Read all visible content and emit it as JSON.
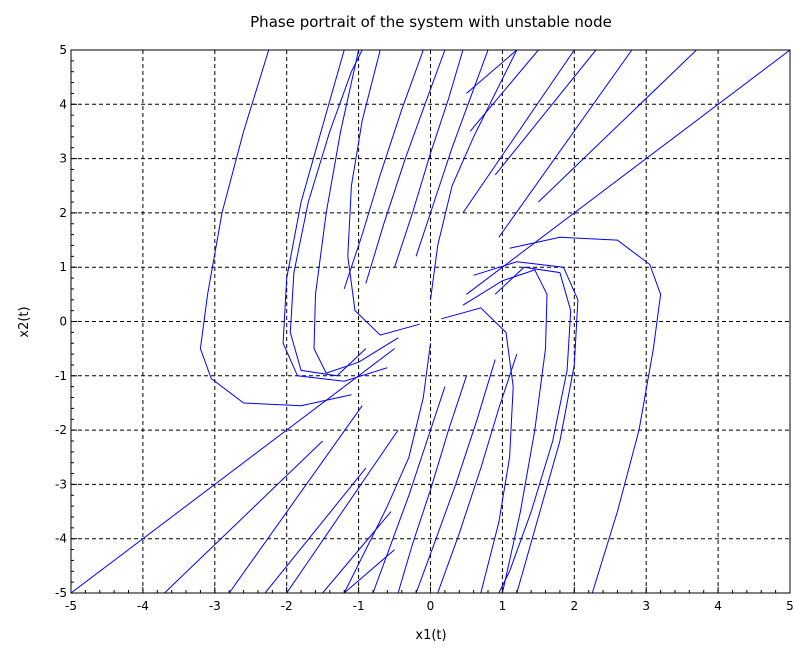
{
  "chart_data": {
    "type": "line",
    "title": "Phase portrait of the system with unstable node",
    "xlabel": "x1(t)",
    "ylabel": "x2(t)",
    "xlim": [
      -5,
      5
    ],
    "ylim": [
      -5,
      5
    ],
    "xticks": [
      -5,
      -4,
      -3,
      -2,
      -1,
      0,
      1,
      2,
      3,
      4,
      5
    ],
    "yticks": [
      -5,
      -4,
      -3,
      -2,
      -1,
      0,
      1,
      2,
      3,
      4,
      5
    ],
    "grid": true,
    "grid_style": "dashed",
    "legend": false,
    "line_color": "#0000ff",
    "series": [
      {
        "x": [
          0.5,
          5
        ],
        "y": [
          0.5,
          5
        ]
      },
      {
        "x": [
          -0.5,
          -5
        ],
        "y": [
          -0.5,
          -5
        ]
      },
      {
        "x": [
          1.1,
          1.8,
          2.6,
          3.05,
          3.2,
          3.1,
          2.9,
          2.6,
          2.25
        ],
        "y": [
          1.35,
          1.55,
          1.5,
          1.05,
          0.5,
          -0.5,
          -2.0,
          -3.5,
          -5
        ]
      },
      {
        "x": [
          -1.1,
          -1.8,
          -2.6,
          -3.05,
          -3.2,
          -3.1,
          -2.9,
          -2.6,
          -2.25
        ],
        "y": [
          -1.35,
          -1.55,
          -1.5,
          -1.05,
          -0.5,
          0.5,
          2.0,
          3.5,
          5
        ]
      },
      {
        "x": [
          0.45,
          1.0,
          1.45,
          1.62,
          1.6,
          1.45,
          1.25,
          1.0
        ],
        "y": [
          0.3,
          0.75,
          0.95,
          0.5,
          -0.5,
          -2.0,
          -3.5,
          -5
        ]
      },
      {
        "x": [
          -0.45,
          -1.0,
          -1.45,
          -1.62,
          -1.6,
          -1.45,
          -1.25,
          -1.0
        ],
        "y": [
          -0.3,
          -0.75,
          -0.95,
          -0.5,
          0.5,
          2.0,
          3.5,
          5
        ]
      },
      {
        "x": [
          0.6,
          1.2,
          1.85,
          2.05,
          2.0,
          1.8,
          1.5,
          1.2
        ],
        "y": [
          0.85,
          1.1,
          1.0,
          0.4,
          -0.8,
          -2.2,
          -3.6,
          -5
        ]
      },
      {
        "x": [
          -0.6,
          -1.2,
          -1.85,
          -2.05,
          -2.0,
          -1.8,
          -1.5,
          -1.2
        ],
        "y": [
          -0.85,
          -1.1,
          -1.0,
          -0.4,
          0.8,
          2.2,
          3.6,
          5
        ]
      },
      {
        "x": [
          0.15,
          0.7,
          1.05,
          1.15,
          1.1,
          0.95,
          0.7
        ],
        "y": [
          0.05,
          0.25,
          -0.2,
          -1.2,
          -2.5,
          -3.7,
          -5
        ]
      },
      {
        "x": [
          -0.15,
          -0.7,
          -1.05,
          -1.15,
          -1.1,
          -0.95,
          -0.7
        ],
        "y": [
          -0.05,
          -0.25,
          0.2,
          1.2,
          2.5,
          3.7,
          5
        ]
      },
      {
        "x": [
          0.9,
          1.3,
          1.8,
          1.95,
          1.9,
          1.7,
          1.4,
          1.1,
          0.95
        ],
        "y": [
          0.5,
          1.0,
          0.9,
          0.2,
          -0.9,
          -2.2,
          -3.5,
          -4.6,
          -5
        ]
      },
      {
        "x": [
          -0.9,
          -1.3,
          -1.8,
          -1.95,
          -1.9,
          -1.7,
          -1.4,
          -1.1,
          -0.95
        ],
        "y": [
          -0.5,
          -1.0,
          -0.9,
          -0.2,
          0.9,
          2.2,
          3.5,
          4.6,
          5
        ]
      },
      {
        "x": [
          0.45,
          2.0
        ],
        "y": [
          2.0,
          5
        ]
      },
      {
        "x": [
          0.95,
          2.8
        ],
        "y": [
          1.55,
          5
        ]
      },
      {
        "x": [
          1.5,
          3.7
        ],
        "y": [
          2.2,
          5
        ]
      },
      {
        "x": [
          0.55,
          1.5
        ],
        "y": [
          3.5,
          5
        ]
      },
      {
        "x": [
          0.9,
          2.3
        ],
        "y": [
          2.7,
          5
        ]
      },
      {
        "x": [
          0.5,
          1.2
        ],
        "y": [
          4.2,
          5
        ]
      },
      {
        "x": [
          -0.45,
          -2.0
        ],
        "y": [
          -2.0,
          -5
        ]
      },
      {
        "x": [
          -0.95,
          -2.8
        ],
        "y": [
          -1.55,
          -5
        ]
      },
      {
        "x": [
          -1.5,
          -3.7
        ],
        "y": [
          -2.2,
          -5
        ]
      },
      {
        "x": [
          -0.55,
          -1.5
        ],
        "y": [
          -3.5,
          -5
        ]
      },
      {
        "x": [
          -0.9,
          -2.3
        ],
        "y": [
          -2.7,
          -5
        ]
      },
      {
        "x": [
          -0.5,
          -1.2
        ],
        "y": [
          -4.2,
          -5
        ]
      },
      {
        "x": [
          0.0,
          0.1,
          0.3,
          0.6,
          0.9,
          1.2
        ],
        "y": [
          0.4,
          1.4,
          2.5,
          3.4,
          4.2,
          5
        ]
      },
      {
        "x": [
          -0.2,
          0.05,
          0.3,
          0.55,
          0.8
        ],
        "y": [
          1.2,
          2.2,
          3.2,
          4.1,
          5
        ]
      },
      {
        "x": [
          -0.5,
          -0.25,
          0.0,
          0.25,
          0.45
        ],
        "y": [
          1.0,
          2.0,
          3.1,
          4.1,
          5
        ]
      },
      {
        "x": [
          -0.9,
          -0.65,
          -0.35,
          -0.05,
          0.2
        ],
        "y": [
          0.7,
          1.8,
          3.0,
          4.1,
          5
        ]
      },
      {
        "x": [
          -1.2,
          -0.95,
          -0.7,
          -0.4,
          -0.1
        ],
        "y": [
          0.6,
          1.6,
          2.7,
          3.9,
          5
        ]
      },
      {
        "x": [
          0.0,
          -0.1,
          -0.3,
          -0.6,
          -0.9,
          -1.2
        ],
        "y": [
          -0.4,
          -1.4,
          -2.5,
          -3.4,
          -4.2,
          -5
        ]
      },
      {
        "x": [
          0.2,
          -0.05,
          -0.3,
          -0.55,
          -0.8
        ],
        "y": [
          -1.2,
          -2.2,
          -3.2,
          -4.1,
          -5
        ]
      },
      {
        "x": [
          0.5,
          0.25,
          0.0,
          -0.25,
          -0.45
        ],
        "y": [
          -1.0,
          -2.0,
          -3.1,
          -4.1,
          -5
        ]
      },
      {
        "x": [
          0.9,
          0.65,
          0.35,
          0.05,
          -0.2
        ],
        "y": [
          -0.7,
          -1.8,
          -3.0,
          -4.1,
          -5
        ]
      },
      {
        "x": [
          1.2,
          0.95,
          0.7,
          0.4,
          0.1
        ],
        "y": [
          -0.6,
          -1.6,
          -2.7,
          -3.9,
          -5
        ]
      }
    ]
  }
}
